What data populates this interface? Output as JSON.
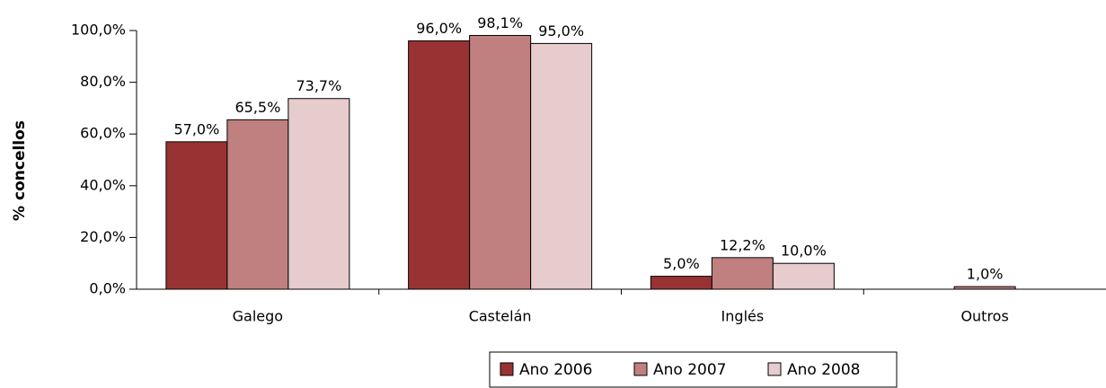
{
  "chart_data": {
    "type": "bar",
    "y_label": "% concellos",
    "categories": [
      "Galego",
      "Castelán",
      "Inglés",
      "Outros"
    ],
    "series": [
      {
        "name": "Ano 2006",
        "color": "#993333",
        "values": [
          57.0,
          96.0,
          5.0,
          null
        ],
        "value_labels": [
          "57,0%",
          "96,0%",
          "5,0%",
          null
        ]
      },
      {
        "name": "Ano 2007",
        "color": "#c08080",
        "values": [
          65.5,
          98.1,
          12.2,
          1.0
        ],
        "value_labels": [
          "65,5%",
          "98,1%",
          "12,2%",
          "1,0%"
        ]
      },
      {
        "name": "Ano 2008",
        "color": "#e6cccc",
        "values": [
          73.7,
          95.0,
          10.0,
          null
        ],
        "value_labels": [
          "73,7%",
          "95,0%",
          "10,0%",
          null
        ]
      }
    ],
    "ylim": [
      0,
      100
    ],
    "yticks": [
      {
        "value": 0,
        "label": "0,0%"
      },
      {
        "value": 20,
        "label": "20,0%"
      },
      {
        "value": 40,
        "label": "40,0%"
      },
      {
        "value": 60,
        "label": "60,0%"
      },
      {
        "value": 80,
        "label": "80,0%"
      },
      {
        "value": 100,
        "label": "100,0%"
      }
    ],
    "legend": "bottom"
  }
}
